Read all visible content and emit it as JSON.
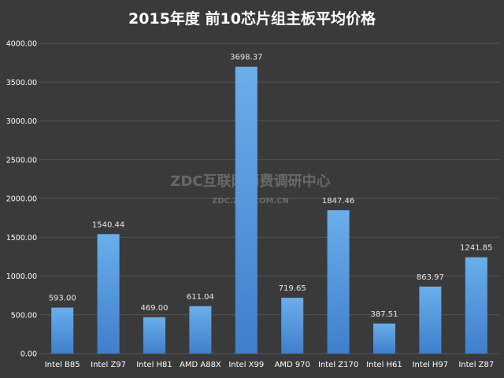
{
  "chart_data": {
    "type": "bar",
    "title": "2015年度 前10芯片组主板平均价格",
    "categories": [
      "Intel B85",
      "Intel Z97",
      "Intel H81",
      "AMD A88X",
      "Intel X99",
      "AMD 970",
      "Intel Z170",
      "Intel H61",
      "Intel H97",
      "Intel Z87"
    ],
    "values": [
      593.0,
      1540.44,
      469.0,
      611.04,
      3698.37,
      719.65,
      1847.46,
      387.51,
      863.97,
      1241.85
    ],
    "value_labels": [
      "593.00",
      "1540.44",
      "469.00",
      "611.04",
      "3698.37",
      "719.65",
      "1847.46",
      "387.51",
      "863.97",
      "1241.85"
    ],
    "y_ticks": [
      "0.00",
      "500.00",
      "1000.00",
      "1500.00",
      "2000.00",
      "2500.00",
      "3000.00",
      "3500.00",
      "4000.00"
    ],
    "ylim": [
      0,
      4000
    ],
    "xlabel": "",
    "ylabel": "",
    "grid": true,
    "legend": "none"
  },
  "watermark": {
    "line1": "ZDC互联网消费调研中心",
    "line2": "ZDC.ZOL.COM.CN"
  },
  "colors": {
    "background": "#3a3a3a",
    "bar_top": "#6aaeea",
    "bar_bottom": "#3f7fcc",
    "grid": "#555555",
    "text": "#ffffff",
    "label": "#e6e6e6"
  }
}
